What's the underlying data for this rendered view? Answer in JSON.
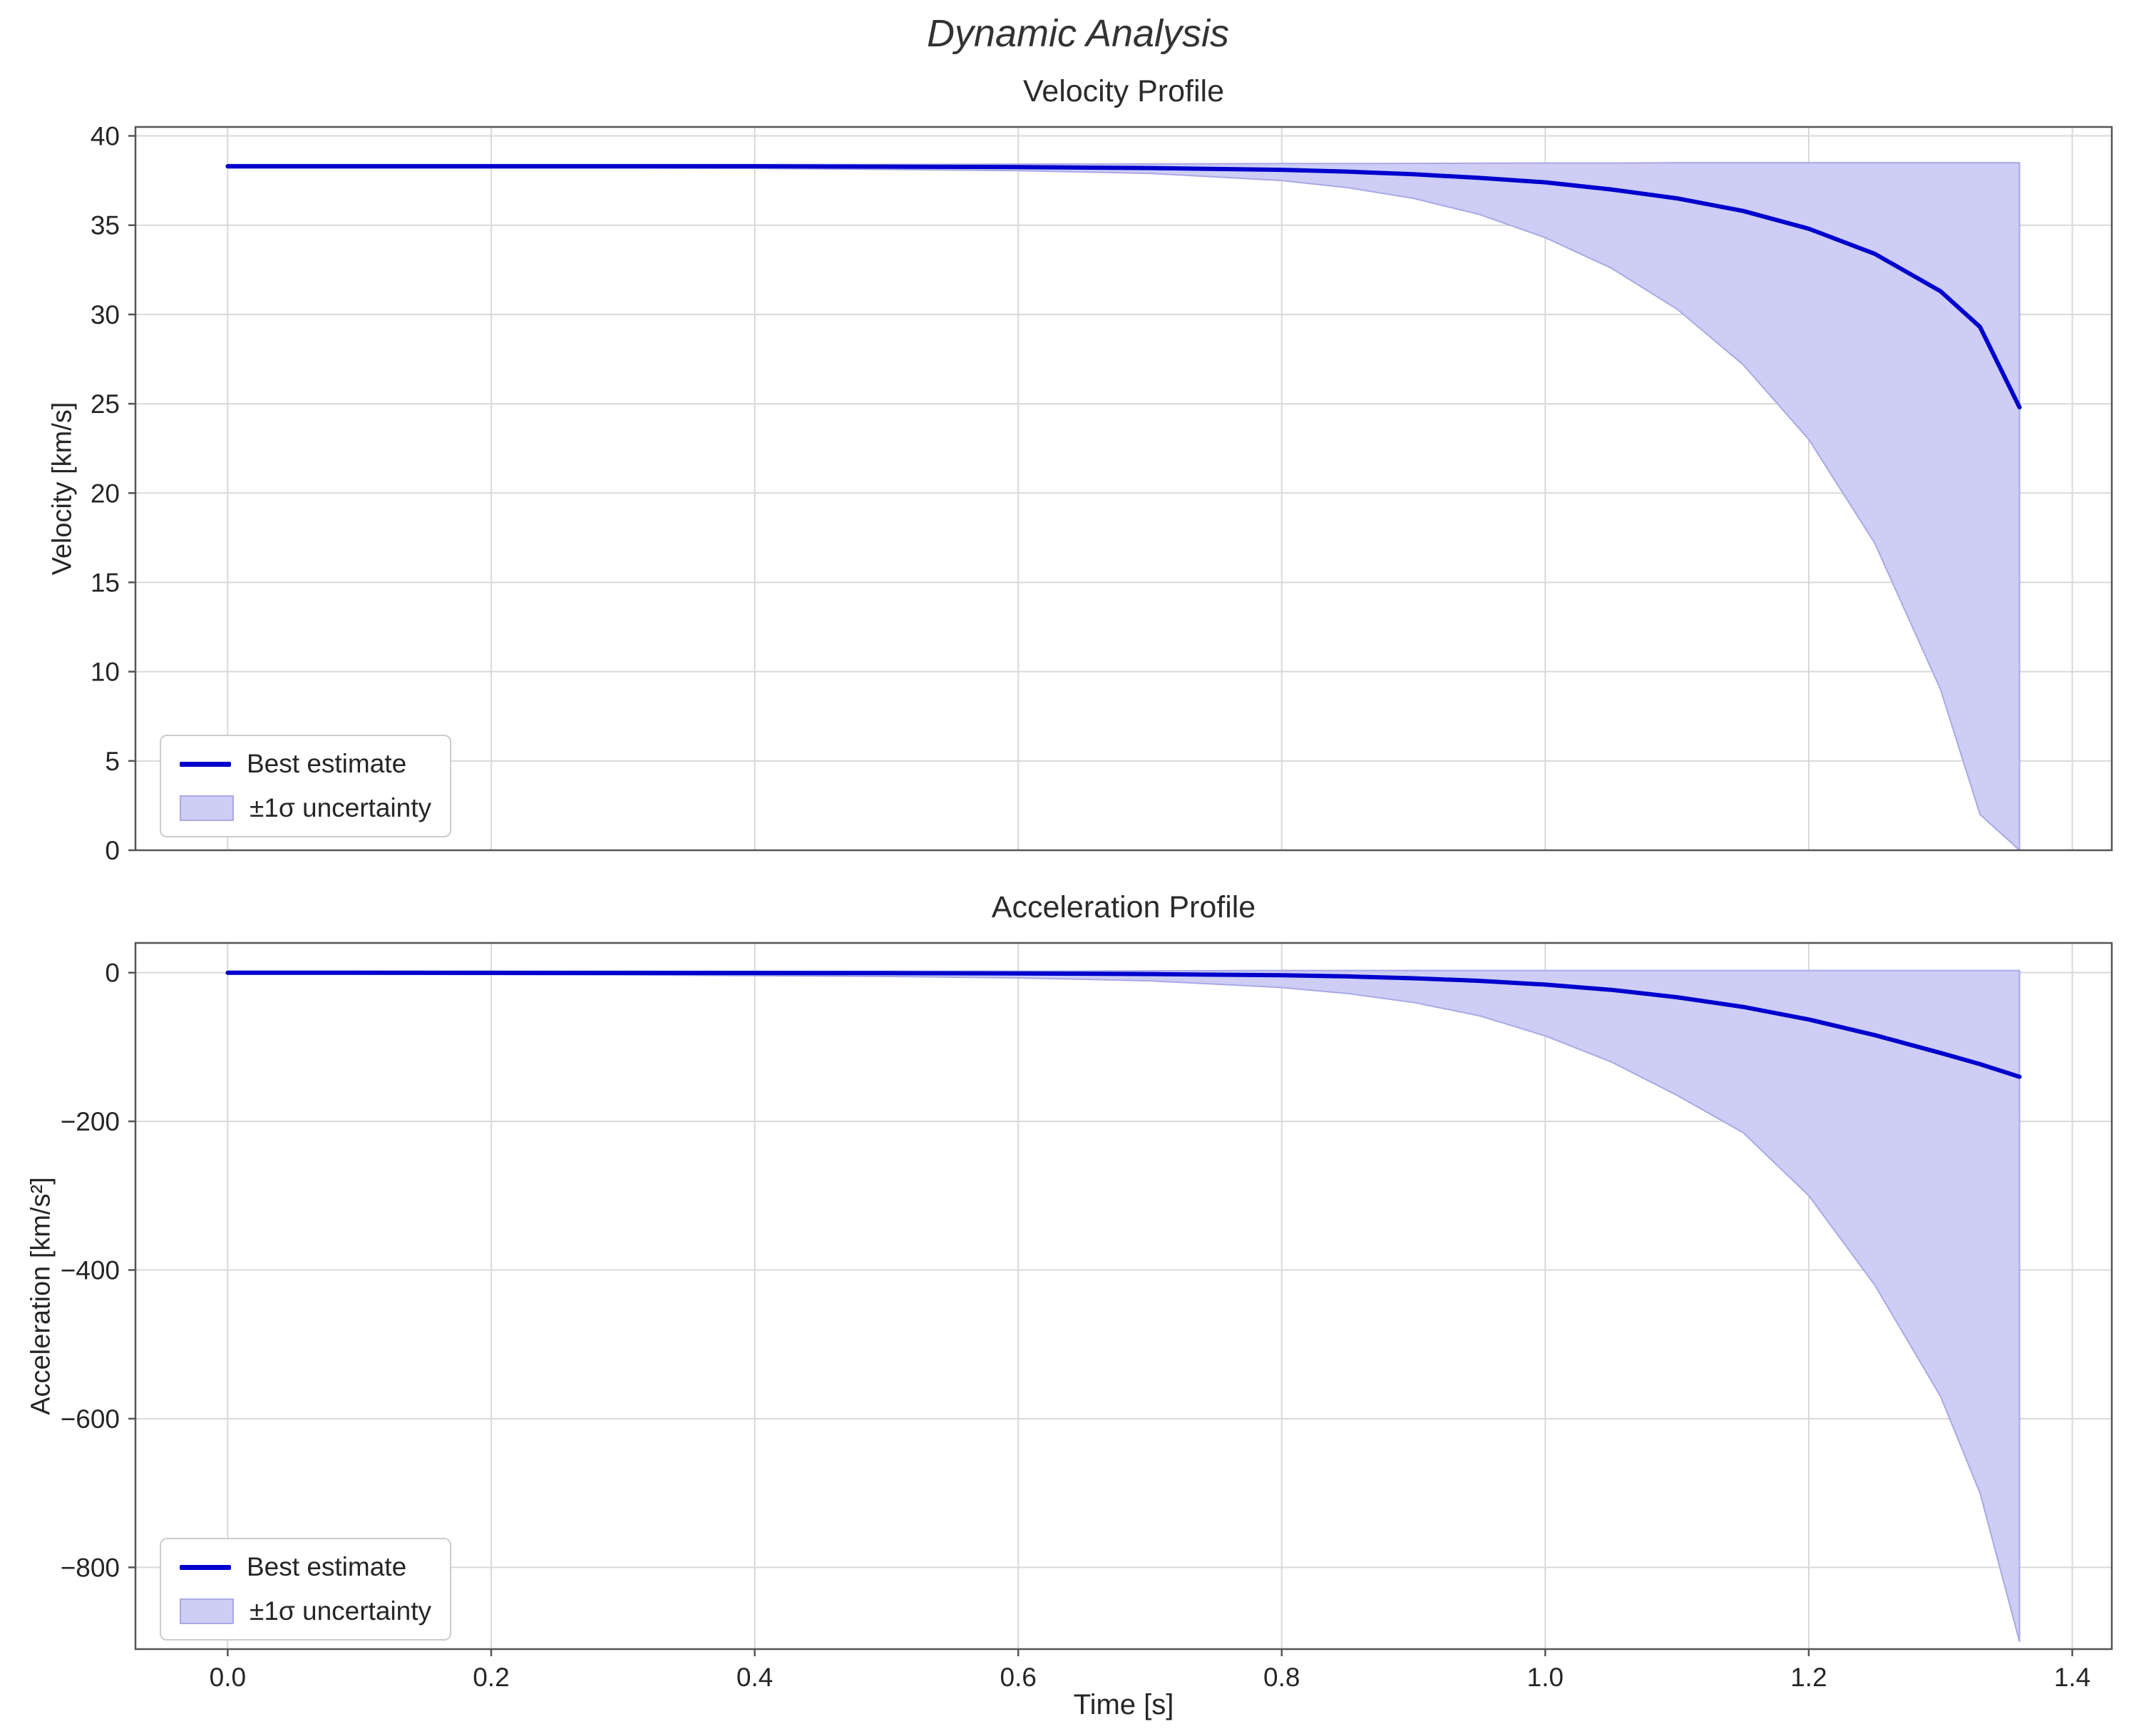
{
  "figure": {
    "title": "Dynamic Analysis",
    "xlabel": "Time [s]"
  },
  "colors": {
    "line": "#0000cd",
    "band_fill": "#cdcdf5",
    "band_edge": "#a9a9e6",
    "grid": "#d9d9d9",
    "spine": "#555555",
    "text": "#262626"
  },
  "chart_data": [
    {
      "type": "line",
      "title": "Velocity Profile",
      "ylabel": "Velocity [km/s]",
      "xlim": [
        -0.07,
        1.43
      ],
      "ylim": [
        0,
        40.5
      ],
      "xticks": [
        0.0,
        0.2,
        0.4,
        0.6,
        0.8,
        1.0,
        1.2,
        1.4
      ],
      "xtick_labels": [
        "0.0",
        "0.2",
        "0.4",
        "0.6",
        "0.8",
        "1.0",
        "1.2",
        "1.4"
      ],
      "yticks": [
        0,
        5,
        10,
        15,
        20,
        25,
        30,
        35,
        40
      ],
      "ytick_labels": [
        "0",
        "5",
        "10",
        "15",
        "20",
        "25",
        "30",
        "35",
        "40"
      ],
      "grid": true,
      "legend_position": "lower-left",
      "legend": [
        {
          "label": "Best estimate",
          "type": "line"
        },
        {
          "label": "±1σ uncertainty",
          "type": "patch"
        }
      ],
      "x": [
        0,
        0.1,
        0.2,
        0.3,
        0.4,
        0.5,
        0.6,
        0.7,
        0.8,
        0.85,
        0.9,
        0.95,
        1.0,
        1.05,
        1.1,
        1.15,
        1.2,
        1.25,
        1.3,
        1.33,
        1.36
      ],
      "best": [
        38.3,
        38.3,
        38.3,
        38.3,
        38.3,
        38.28,
        38.25,
        38.2,
        38.1,
        38.0,
        37.85,
        37.65,
        37.4,
        37.0,
        36.5,
        35.8,
        34.8,
        33.4,
        31.3,
        29.3,
        24.8
      ],
      "upper": [
        38.4,
        38.4,
        38.4,
        38.4,
        38.4,
        38.4,
        38.42,
        38.43,
        38.45,
        38.45,
        38.46,
        38.47,
        38.48,
        38.48,
        38.5,
        38.5,
        38.5,
        38.5,
        38.5,
        38.5,
        38.5
      ],
      "lower": [
        38.2,
        38.2,
        38.2,
        38.2,
        38.18,
        38.12,
        38.05,
        37.9,
        37.5,
        37.1,
        36.5,
        35.6,
        34.3,
        32.6,
        30.3,
        27.2,
        23.0,
        17.2,
        9.0,
        2.0,
        0.0
      ]
    },
    {
      "type": "line",
      "title": "Acceleration Profile",
      "ylabel": "Acceleration [km/s²]",
      "xlim": [
        -0.07,
        1.43
      ],
      "ylim": [
        -910,
        40
      ],
      "xticks": [
        0.0,
        0.2,
        0.4,
        0.6,
        0.8,
        1.0,
        1.2,
        1.4
      ],
      "xtick_labels": [
        "0.0",
        "0.2",
        "0.4",
        "0.6",
        "0.8",
        "1.0",
        "1.2",
        "1.4"
      ],
      "yticks": [
        0,
        -200,
        -400,
        -600,
        -800
      ],
      "ytick_labels": [
        "0",
        "−200",
        "−400",
        "−600",
        "−800"
      ],
      "grid": true,
      "legend_position": "lower-left",
      "legend": [
        {
          "label": "Best estimate",
          "type": "line"
        },
        {
          "label": "±1σ uncertainty",
          "type": "patch"
        }
      ],
      "x": [
        0,
        0.1,
        0.2,
        0.3,
        0.4,
        0.5,
        0.6,
        0.7,
        0.8,
        0.85,
        0.9,
        0.95,
        1.0,
        1.05,
        1.1,
        1.15,
        1.2,
        1.25,
        1.3,
        1.33,
        1.36
      ],
      "best": [
        -0.1,
        -0.1,
        -0.2,
        -0.3,
        -0.4,
        -0.6,
        -1.0,
        -1.8,
        -3.5,
        -5,
        -7.5,
        -11,
        -16,
        -23,
        -33,
        -46,
        -63,
        -84,
        -108,
        -123,
        -140
      ],
      "upper": [
        2,
        2,
        2,
        2,
        2,
        2,
        2,
        2.5,
        3,
        3,
        3,
        3,
        3,
        3,
        3,
        3,
        3,
        3,
        3,
        3,
        3
      ],
      "lower": [
        -2,
        -2,
        -2.5,
        -3,
        -4,
        -5,
        -7,
        -11,
        -20,
        -28,
        -40,
        -58,
        -85,
        -120,
        -165,
        -215,
        -300,
        -420,
        -570,
        -700,
        -900
      ]
    }
  ]
}
